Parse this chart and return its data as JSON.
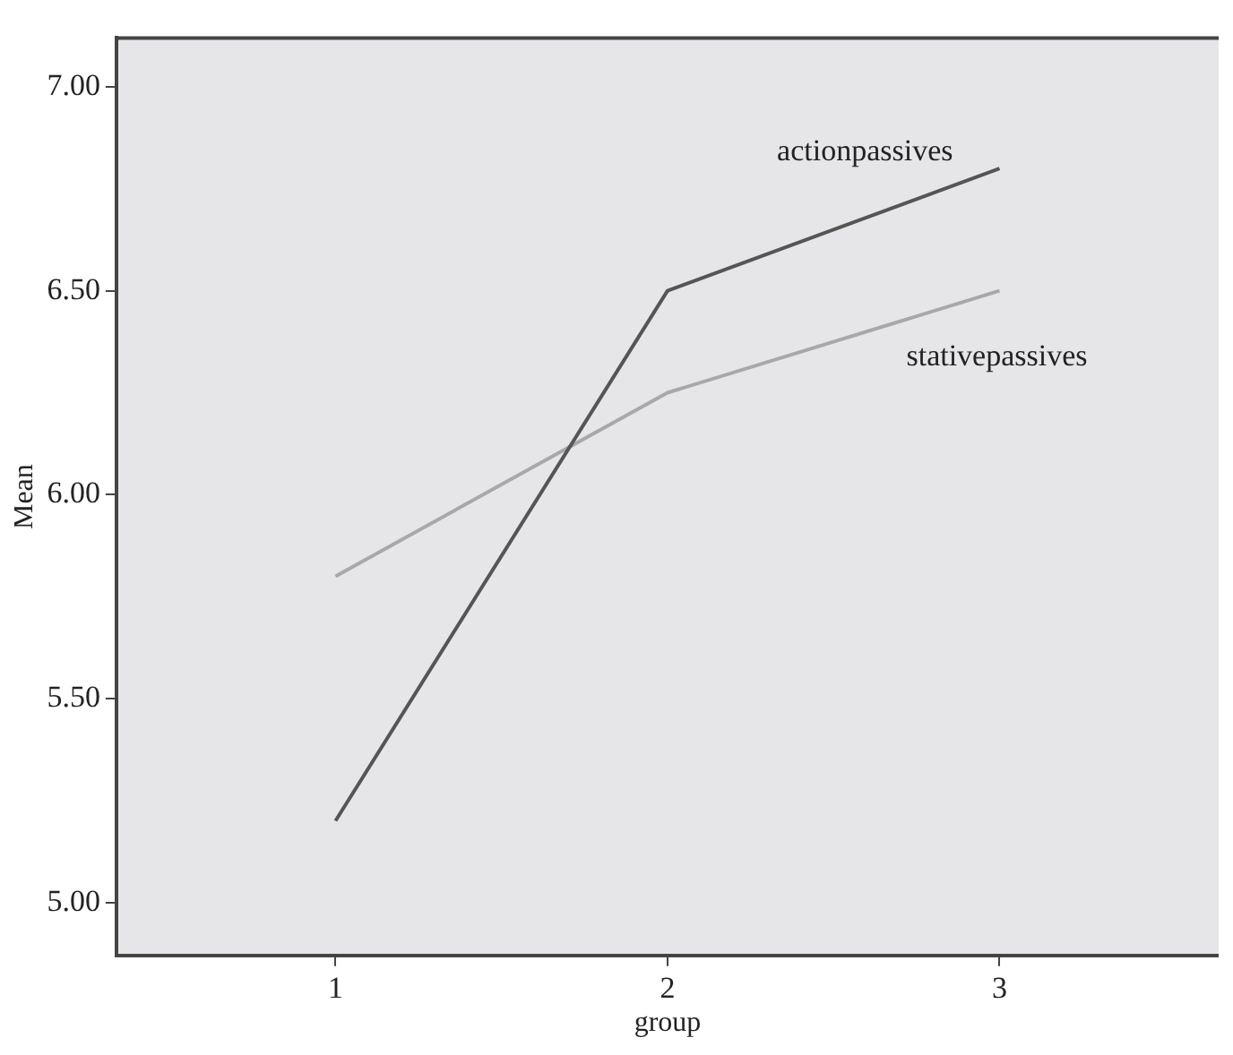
{
  "chart_data": {
    "type": "line",
    "xlabel": "group",
    "ylabel": "Mean",
    "x": [
      1,
      2,
      3
    ],
    "series": [
      {
        "name": "actionpassives",
        "color": "#555555",
        "values": [
          5.2,
          6.5,
          6.8
        ]
      },
      {
        "name": "stativepassives",
        "color": "#a8a8a8",
        "values": [
          5.8,
          6.25,
          6.5
        ]
      }
    ],
    "xlim": [
      0.34,
      3.66
    ],
    "xticks": [
      {
        "value": 1,
        "label": "1"
      },
      {
        "value": 2,
        "label": "2"
      },
      {
        "value": 3,
        "label": "3"
      }
    ],
    "ylim": [
      4.87,
      7.12
    ],
    "yticks": [
      {
        "value": 5,
        "label": "5.00"
      },
      {
        "value": 5.5,
        "label": "5.50"
      },
      {
        "value": 6,
        "label": "6.00"
      },
      {
        "value": 6.5,
        "label": "6.50"
      },
      {
        "value": 7,
        "label": "7.00"
      }
    ],
    "grid": false,
    "legend": false,
    "marker": "none",
    "line_style": "solid"
  }
}
